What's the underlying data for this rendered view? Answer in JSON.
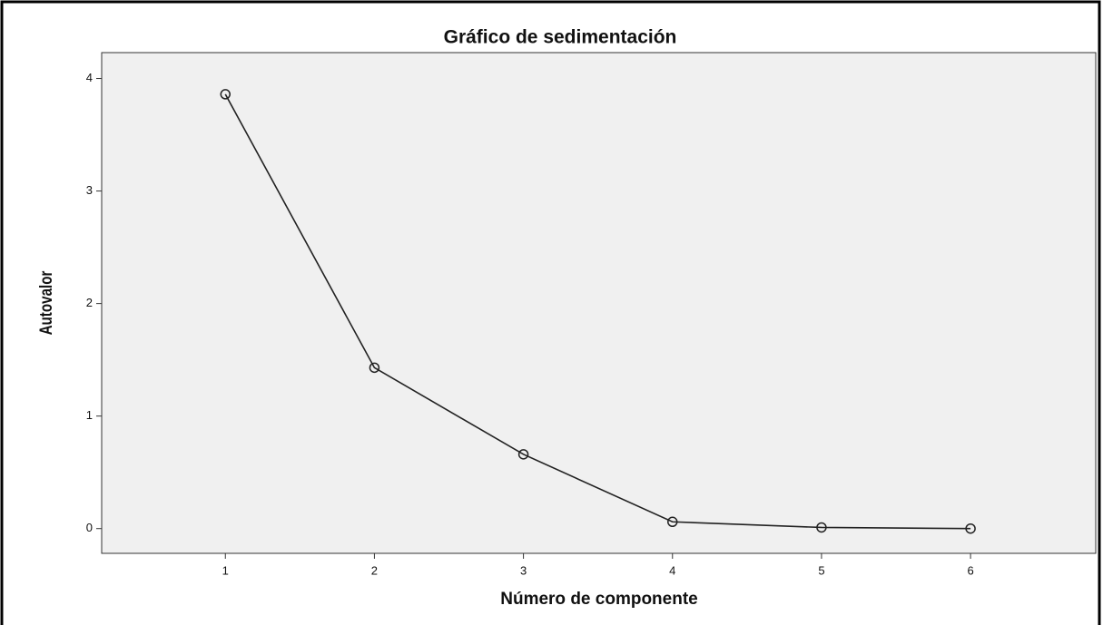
{
  "chart_data": {
    "type": "line",
    "title": "Gráfico de sedimentación",
    "xlabel": "Número de componente",
    "ylabel": "Autovalor",
    "x": [
      1,
      2,
      3,
      4,
      5,
      6
    ],
    "series": [
      {
        "name": "Autovalor",
        "color": "#222222",
        "values": [
          3.86,
          1.43,
          0.66,
          0.06,
          0.01,
          0.0
        ]
      }
    ],
    "xlim": [
      0.17,
      6.84
    ],
    "xticks": [
      1,
      2,
      3,
      4,
      5,
      6
    ],
    "ylim": [
      -0.22,
      4.23
    ],
    "yticks": [
      0,
      1,
      2,
      3,
      4
    ],
    "marker": "open-circle",
    "grid": false
  }
}
